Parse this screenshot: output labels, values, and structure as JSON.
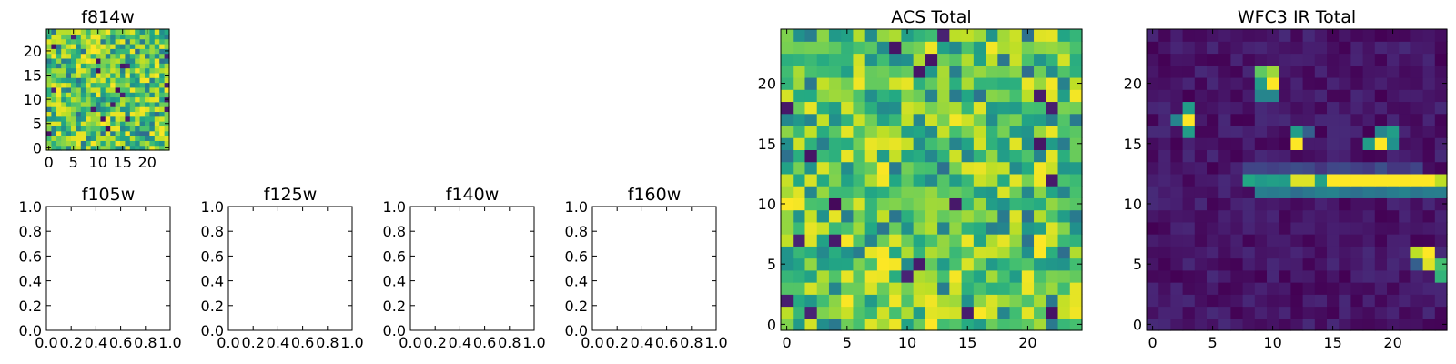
{
  "chart_data": [
    {
      "type": "heatmap",
      "title": "f814w",
      "grid_size": 25,
      "colormap": "viridis",
      "xticks": [
        0,
        5,
        10,
        15,
        20
      ],
      "yticks": [
        0,
        5,
        10,
        15,
        20
      ],
      "data_pattern": "noise",
      "value_range": [
        0.35,
        1.0
      ]
    },
    {
      "type": "empty",
      "title": "f105w",
      "xticks": [
        "0.0",
        "0.2",
        "0.4",
        "0.6",
        "0.8",
        "1.0"
      ],
      "yticks": [
        "0.0",
        "0.2",
        "0.4",
        "0.6",
        "0.8",
        "1.0"
      ],
      "xlim": [
        0,
        1
      ],
      "ylim": [
        0,
        1
      ]
    },
    {
      "type": "empty",
      "title": "f125w",
      "xticks": [
        "0.0",
        "0.2",
        "0.4",
        "0.6",
        "0.8",
        "1.0"
      ],
      "yticks": [
        "0.0",
        "0.2",
        "0.4",
        "0.6",
        "0.8",
        "1.0"
      ],
      "xlim": [
        0,
        1
      ],
      "ylim": [
        0,
        1
      ]
    },
    {
      "type": "empty",
      "title": "f140w",
      "xticks": [
        "0.0",
        "0.2",
        "0.4",
        "0.6",
        "0.8",
        "1.0"
      ],
      "yticks": [
        "0.0",
        "0.2",
        "0.4",
        "0.6",
        "0.8",
        "1.0"
      ],
      "xlim": [
        0,
        1
      ],
      "ylim": [
        0,
        1
      ]
    },
    {
      "type": "empty",
      "title": "f160w",
      "xticks": [
        "0.0",
        "0.2",
        "0.4",
        "0.6",
        "0.8",
        "1.0"
      ],
      "yticks": [
        "0.0",
        "0.2",
        "0.4",
        "0.6",
        "0.8",
        "1.0"
      ],
      "xlim": [
        0,
        1
      ],
      "ylim": [
        0,
        1
      ]
    },
    {
      "type": "heatmap",
      "title": "ACS Total",
      "grid_size": 25,
      "colormap": "viridis",
      "xticks": [
        0,
        5,
        10,
        15,
        20
      ],
      "yticks": [
        0,
        5,
        10,
        15,
        20
      ],
      "data_pattern": "noise",
      "value_range": [
        0.35,
        1.0
      ]
    },
    {
      "type": "heatmap",
      "title": "WFC3 IR Total",
      "grid_size": 25,
      "colormap": "viridis",
      "xticks": [
        0,
        5,
        10,
        15,
        20
      ],
      "yticks": [
        0,
        5,
        10,
        15,
        20
      ],
      "data_pattern": "sources",
      "background": [
        0.0,
        0.12
      ],
      "features": [
        {
          "kind": "row",
          "row": 12,
          "x": [
            8,
            24
          ],
          "base": 0.55,
          "cells": {
            "12": 0.95,
            "13": 0.95,
            "15": 1.0,
            "16": 1.0,
            "17": 1.0,
            "18": 1.0,
            "19": 1.0,
            "20": 1.0,
            "21": 1.0,
            "22": 1.0,
            "23": 1.0,
            "24": 0.9
          }
        },
        {
          "kind": "row",
          "row": 11,
          "x": [
            9,
            24
          ],
          "base": 0.4
        },
        {
          "kind": "row",
          "row": 13,
          "x": [
            8,
            22
          ],
          "base": 0.2
        },
        {
          "kind": "cell",
          "x": 3,
          "y": 17,
          "v": 1.0
        },
        {
          "kind": "cell",
          "x": 2,
          "y": 17,
          "v": 0.45
        },
        {
          "kind": "cell",
          "x": 3,
          "y": 16,
          "v": 0.55
        },
        {
          "kind": "cell",
          "x": 3,
          "y": 18,
          "v": 0.55
        },
        {
          "kind": "cell",
          "x": 9,
          "y": 21,
          "v": 0.75
        },
        {
          "kind": "cell",
          "x": 10,
          "y": 21,
          "v": 0.85
        },
        {
          "kind": "cell",
          "x": 10,
          "y": 20,
          "v": 1.0
        },
        {
          "kind": "cell",
          "x": 9,
          "y": 20,
          "v": 0.55
        },
        {
          "kind": "cell",
          "x": 9,
          "y": 19,
          "v": 0.45
        },
        {
          "kind": "cell",
          "x": 10,
          "y": 19,
          "v": 0.45
        },
        {
          "kind": "cell",
          "x": 12,
          "y": 15,
          "v": 1.0
        },
        {
          "kind": "cell",
          "x": 12,
          "y": 16,
          "v": 0.55
        },
        {
          "kind": "cell",
          "x": 13,
          "y": 16,
          "v": 0.3
        },
        {
          "kind": "cell",
          "x": 18,
          "y": 15,
          "v": 0.55
        },
        {
          "kind": "cell",
          "x": 19,
          "y": 15,
          "v": 1.0
        },
        {
          "kind": "cell",
          "x": 19,
          "y": 16,
          "v": 0.45
        },
        {
          "kind": "cell",
          "x": 20,
          "y": 16,
          "v": 0.55
        },
        {
          "kind": "cell",
          "x": 20,
          "y": 15,
          "v": 0.5
        },
        {
          "kind": "cell",
          "x": 22,
          "y": 6,
          "v": 0.9
        },
        {
          "kind": "cell",
          "x": 23,
          "y": 6,
          "v": 1.0
        },
        {
          "kind": "cell",
          "x": 23,
          "y": 5,
          "v": 0.95
        },
        {
          "kind": "cell",
          "x": 24,
          "y": 5,
          "v": 0.7
        },
        {
          "kind": "cell",
          "x": 24,
          "y": 4,
          "v": 0.65
        },
        {
          "kind": "cell",
          "x": 22,
          "y": 5,
          "v": 0.3
        }
      ]
    }
  ]
}
